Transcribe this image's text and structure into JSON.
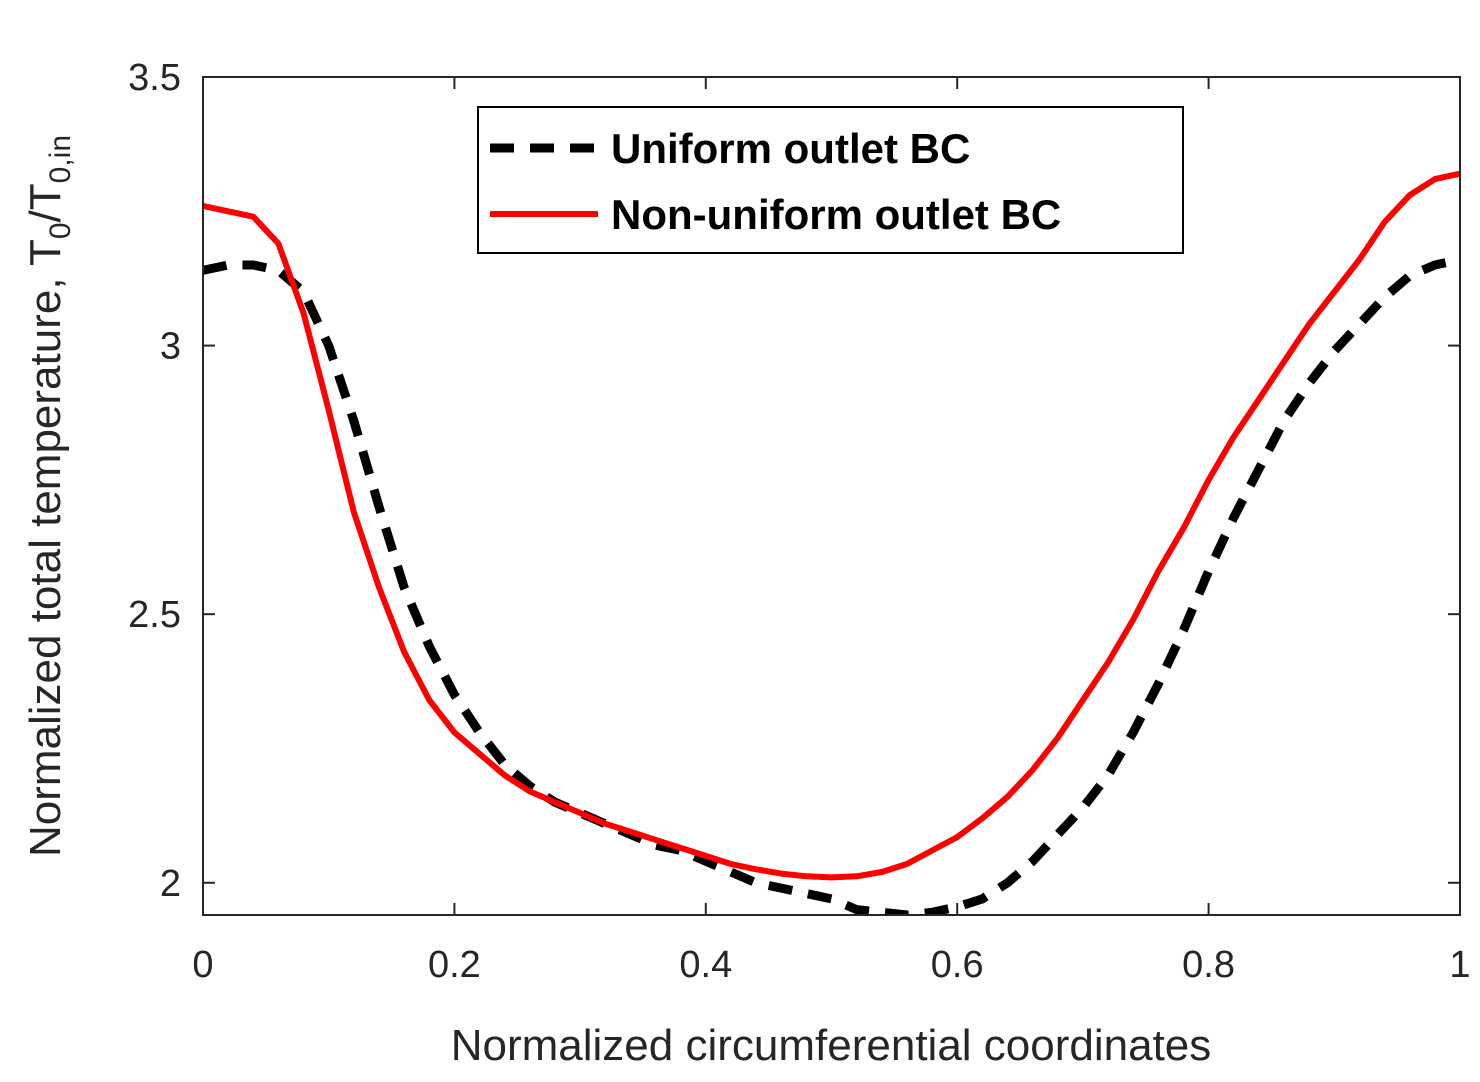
{
  "chart_data": {
    "type": "line",
    "xlabel": "Normalized circumferential coordinates",
    "ylabel": {
      "prefix": "Normalized total temperature, T",
      "sub1": "0",
      "slash": "/T",
      "sub2": "0,in"
    },
    "xlim": [
      0,
      1
    ],
    "ylim": [
      1.94,
      3.5
    ],
    "xticks": [
      0,
      0.2,
      0.4,
      0.6,
      0.8,
      1
    ],
    "xtick_labels": [
      "0",
      "0.2",
      "0.4",
      "0.6",
      "0.8",
      "1"
    ],
    "yticks": [
      2,
      2.5,
      3,
      3.5
    ],
    "ytick_labels": [
      "2",
      "2.5",
      "3",
      "3.5"
    ],
    "grid": false,
    "legend_position": "top-center",
    "series": [
      {
        "name": "Uniform outlet BC",
        "color": "#000000",
        "style": "dashed",
        "x": [
          0,
          0.02,
          0.04,
          0.06,
          0.08,
          0.1,
          0.12,
          0.14,
          0.16,
          0.18,
          0.2,
          0.22,
          0.24,
          0.26,
          0.28,
          0.3,
          0.32,
          0.34,
          0.36,
          0.38,
          0.4,
          0.42,
          0.44,
          0.46,
          0.48,
          0.5,
          0.52,
          0.54,
          0.56,
          0.58,
          0.6,
          0.62,
          0.64,
          0.66,
          0.68,
          0.7,
          0.72,
          0.74,
          0.76,
          0.78,
          0.8,
          0.82,
          0.84,
          0.86,
          0.88,
          0.9,
          0.92,
          0.94,
          0.96,
          0.98,
          1.0
        ],
        "y": [
          3.14,
          3.15,
          3.15,
          3.14,
          3.1,
          3.0,
          2.86,
          2.7,
          2.55,
          2.44,
          2.35,
          2.28,
          2.22,
          2.18,
          2.15,
          2.13,
          2.11,
          2.09,
          2.07,
          2.06,
          2.04,
          2.02,
          2.0,
          1.99,
          1.98,
          1.97,
          1.95,
          1.945,
          1.94,
          1.945,
          1.955,
          1.97,
          2.0,
          2.04,
          2.09,
          2.14,
          2.2,
          2.28,
          2.37,
          2.47,
          2.58,
          2.68,
          2.77,
          2.86,
          2.93,
          2.99,
          3.04,
          3.09,
          3.13,
          3.15,
          3.16
        ]
      },
      {
        "name": "Non-uniform outlet BC",
        "color": "#ff0000",
        "style": "solid",
        "x": [
          0,
          0.02,
          0.04,
          0.06,
          0.08,
          0.1,
          0.12,
          0.14,
          0.16,
          0.18,
          0.2,
          0.22,
          0.24,
          0.26,
          0.28,
          0.3,
          0.32,
          0.34,
          0.36,
          0.38,
          0.4,
          0.42,
          0.44,
          0.46,
          0.48,
          0.5,
          0.52,
          0.54,
          0.56,
          0.58,
          0.6,
          0.62,
          0.64,
          0.66,
          0.68,
          0.7,
          0.72,
          0.74,
          0.76,
          0.78,
          0.8,
          0.82,
          0.84,
          0.86,
          0.88,
          0.9,
          0.92,
          0.94,
          0.96,
          0.98,
          1.0
        ],
        "y": [
          3.26,
          3.25,
          3.24,
          3.19,
          3.06,
          2.88,
          2.69,
          2.55,
          2.43,
          2.34,
          2.28,
          2.24,
          2.2,
          2.17,
          2.15,
          2.13,
          2.11,
          2.095,
          2.08,
          2.065,
          2.05,
          2.035,
          2.025,
          2.017,
          2.012,
          2.01,
          2.012,
          2.02,
          2.035,
          2.06,
          2.085,
          2.12,
          2.16,
          2.21,
          2.27,
          2.34,
          2.41,
          2.49,
          2.58,
          2.66,
          2.75,
          2.83,
          2.9,
          2.97,
          3.04,
          3.1,
          3.16,
          3.23,
          3.28,
          3.31,
          3.32
        ]
      }
    ]
  }
}
